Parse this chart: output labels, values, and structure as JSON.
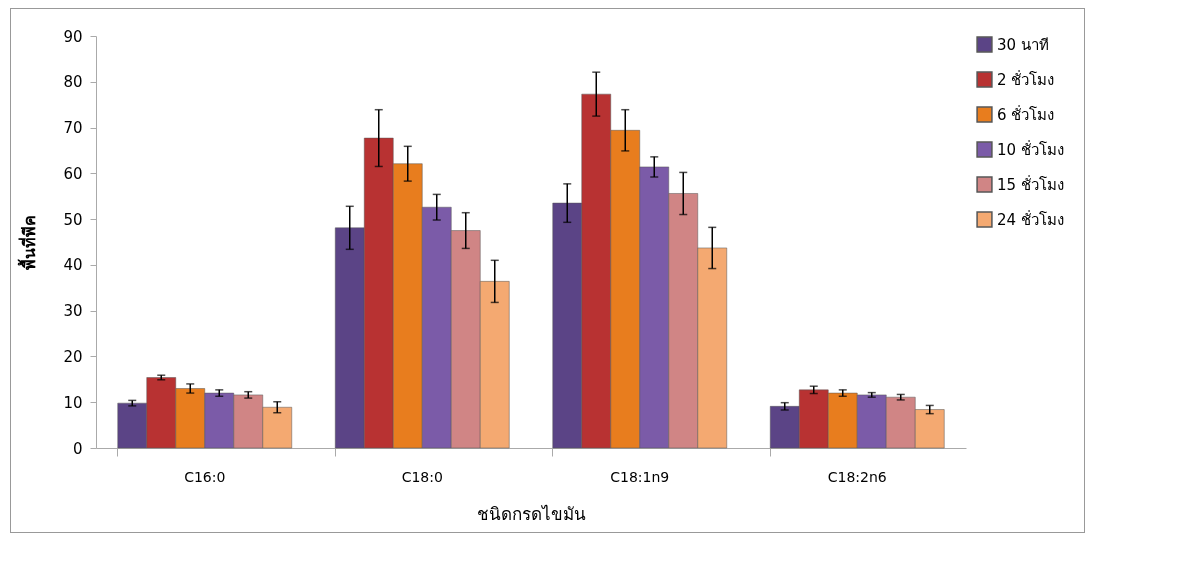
{
  "chart_data": {
    "type": "bar",
    "xlabel": "ชนิดกรดไขมัน",
    "ylabel": "พื้นที่พีค",
    "categories": [
      "C16:0",
      "C18:0",
      "C18:1n9",
      "C18:2n6"
    ],
    "series": [
      {
        "name": "30 นาที",
        "color": "#5b4486",
        "values": [
          9.8,
          48.1,
          53.5,
          9.1
        ],
        "errors": [
          0.6,
          4.7,
          4.2,
          0.8
        ]
      },
      {
        "name": "2 ชั่วโมง",
        "color": "#b83232",
        "values": [
          15.4,
          67.7,
          77.3,
          12.7
        ],
        "errors": [
          0.5,
          6.2,
          4.8,
          0.8
        ]
      },
      {
        "name": "6 ชั่วโมง",
        "color": "#e87d1e",
        "values": [
          13.0,
          62.1,
          69.4,
          12.0
        ],
        "errors": [
          1.0,
          3.8,
          4.5,
          0.7
        ]
      },
      {
        "name": "10 ชั่วโมง",
        "color": "#7b5ba8",
        "values": [
          12.0,
          52.6,
          61.4,
          11.6
        ],
        "errors": [
          0.7,
          2.8,
          2.2,
          0.5
        ]
      },
      {
        "name": "15 ชั่วโมง",
        "color": "#d08585",
        "values": [
          11.6,
          47.5,
          55.6,
          11.1
        ],
        "errors": [
          0.7,
          3.9,
          4.6,
          0.6
        ]
      },
      {
        "name": "24 ชั่วโมง",
        "color": "#f4a971",
        "values": [
          8.9,
          36.4,
          43.7,
          8.4
        ],
        "errors": [
          1.2,
          4.6,
          4.5,
          0.9
        ]
      }
    ],
    "ylim": [
      0,
      90
    ],
    "yticks": [
      0,
      10,
      20,
      30,
      40,
      50,
      60,
      70,
      80,
      90
    ],
    "grid": false,
    "legend": "right"
  }
}
